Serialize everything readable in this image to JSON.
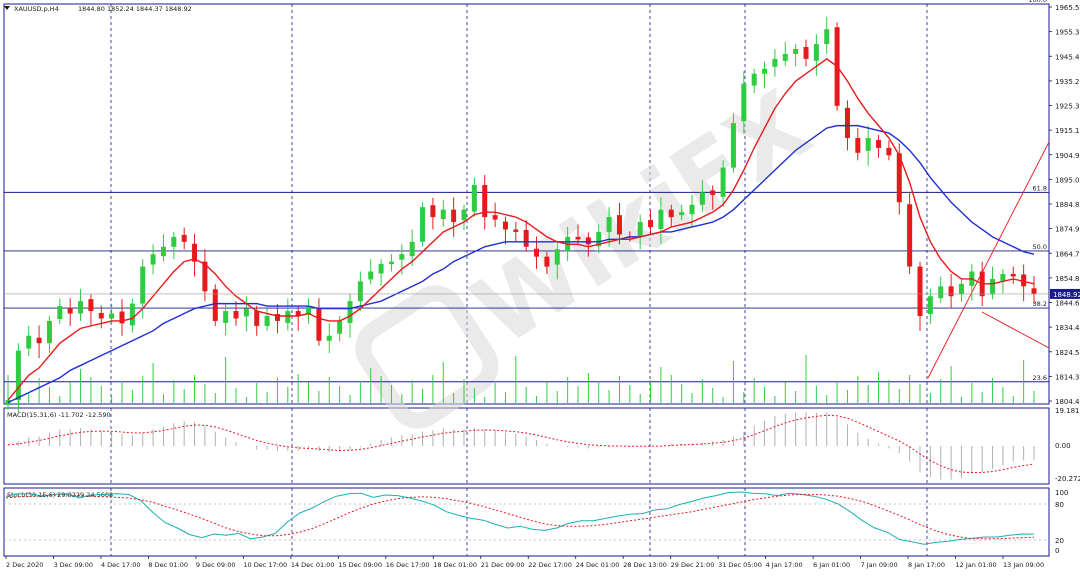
{
  "window": {
    "title": "XAUUSD.p,H4",
    "ohlc": "1844.80 1852.24 1844.37 1848.92"
  },
  "colors": {
    "background": "#ffffff",
    "border": "#1a1a8c",
    "grid_vertical": "#1a1a8c",
    "candle_up": "#2ecc40",
    "candle_down": "#e8191c",
    "ma_fast": "#e8191c",
    "ma_slow": "#1f2fd0",
    "volume": "#2ecc40",
    "fib": "#1a1a8c",
    "trend": "#e8191c",
    "macd_hist": "#b0b0b0",
    "macd_signal": "#e8191c",
    "stoch_main": "#1ab0b0",
    "stoch_signal": "#e8191c",
    "current_price_bg": "#1a1a8c",
    "current_price_fg": "#ffffff",
    "watermark": "#d9d9d9"
  },
  "watermark": {
    "text": "WikiFX"
  },
  "price_axis": {
    "ticks": [
      "1965.50",
      "1955.30",
      "1945.40",
      "1935.20",
      "1925.30",
      "1915.10",
      "1904.90",
      "1895.00",
      "1884.80",
      "1874.90",
      "1864.70",
      "1854.80",
      "1844.60",
      "1834.40",
      "1824.50",
      "1814.30",
      "1804.40"
    ],
    "current_price": "1848.92"
  },
  "fibonacci": {
    "levels": [
      {
        "label": "100.0",
        "price": 1966.2
      },
      {
        "label": "61.8",
        "price": 1890.0
      },
      {
        "label": "50.0",
        "price": 1866.3
      },
      {
        "label": "38.2",
        "price": 1843.2
      },
      {
        "label": "23.6",
        "price": 1813.4
      }
    ]
  },
  "macd": {
    "label": "MACD(15,31,6) -11.702 -12.590",
    "ticks": [
      "19.181",
      "0.00",
      "-20.272"
    ]
  },
  "stochastic": {
    "label": "Stoch(30,15,6) 29.8229 24.5668",
    "ticks": [
      "100",
      "80",
      "20",
      "0"
    ],
    "levels": [
      80,
      20
    ]
  },
  "time_axis": {
    "labels": [
      "2 Dec 2020",
      "3 Dec 09:00",
      "4 Dec 17:00",
      "8 Dec 01:00",
      "9 Dec 09:00",
      "10 Dec 17:00",
      "14 Dec 01:00",
      "15 Dec 09:00",
      "16 Dec 17:00",
      "18 Dec 01:00",
      "21 Dec 09:00",
      "22 Dec 17:00",
      "24 Dec 01:00",
      "28 Dec 13:00",
      "29 Dec 21:00",
      "31 Dec 05:00",
      "4 Jan 17:00",
      "6 Jan 01:00",
      "7 Jan 09:00",
      "8 Jan 17:00",
      "12 Jan 01:00",
      "13 Jan 09:00"
    ]
  },
  "chart_data": {
    "type": "candlestick",
    "symbol": "XAUUSD.p",
    "timeframe": "H4",
    "ylim": [
      1804.4,
      1966.2
    ],
    "close": [
      1806,
      1826,
      1832,
      1829,
      1838,
      1844,
      1841,
      1846,
      1842,
      1839,
      1841,
      1837,
      1845,
      1860,
      1865,
      1868,
      1872,
      1870,
      1862,
      1850,
      1838,
      1842,
      1839,
      1843,
      1836,
      1840,
      1838,
      1842,
      1840,
      1844,
      1830,
      1832,
      1838,
      1846,
      1854,
      1858,
      1861,
      1862,
      1865,
      1870,
      1884,
      1880,
      1883,
      1878,
      1883,
      1893,
      1880,
      1879,
      1875,
      1874,
      1868,
      1864,
      1860,
      1867,
      1872,
      1871,
      1869,
      1874,
      1880,
      1873,
      1872,
      1878,
      1876,
      1883,
      1880,
      1882,
      1885,
      1890,
      1889,
      1900,
      1918,
      1934,
      1938,
      1940,
      1944,
      1946,
      1948,
      1944,
      1950,
      1956,
      1925,
      1912,
      1906,
      1912,
      1908,
      1905,
      1886,
      1860,
      1840,
      1848,
      1852,
      1848,
      1853,
      1858,
      1848,
      1855,
      1857,
      1856,
      1852,
      1848.92
    ],
    "ma_fast": [
      1806,
      1811,
      1816,
      1819,
      1824,
      1829,
      1832,
      1835,
      1836,
      1837,
      1838,
      1838,
      1839,
      1843,
      1848,
      1853,
      1858,
      1862,
      1863,
      1861,
      1857,
      1852,
      1848,
      1845,
      1842,
      1841,
      1840,
      1840,
      1840,
      1841,
      1839,
      1838,
      1838,
      1840,
      1843,
      1847,
      1851,
      1855,
      1859,
      1862,
      1866,
      1870,
      1874,
      1876,
      1878,
      1881,
      1882,
      1882,
      1881,
      1880,
      1878,
      1875,
      1872,
      1870,
      1869,
      1869,
      1868,
      1869,
      1870,
      1871,
      1871,
      1872,
      1873,
      1874,
      1876,
      1877,
      1878,
      1880,
      1882,
      1885,
      1891,
      1899,
      1908,
      1916,
      1924,
      1930,
      1935,
      1938,
      1941,
      1944,
      1941,
      1935,
      1928,
      1922,
      1917,
      1912,
      1905,
      1894,
      1880,
      1870,
      1863,
      1858,
      1855,
      1855,
      1853,
      1853,
      1854,
      1855,
      1854,
      1853
    ],
    "ma_slow": [
      1805,
      1807,
      1809,
      1811,
      1813,
      1815,
      1818,
      1820,
      1822,
      1824,
      1826,
      1828,
      1830,
      1832,
      1834,
      1837,
      1839,
      1841,
      1843,
      1844,
      1845,
      1845,
      1845,
      1845,
      1845,
      1844,
      1844,
      1844,
      1844,
      1844,
      1843,
      1843,
      1843,
      1843,
      1844,
      1845,
      1846,
      1848,
      1850,
      1852,
      1854,
      1857,
      1859,
      1862,
      1864,
      1866,
      1868,
      1869,
      1870,
      1870,
      1870,
      1870,
      1870,
      1870,
      1870,
      1870,
      1870,
      1870,
      1871,
      1871,
      1872,
      1872,
      1873,
      1874,
      1874,
      1875,
      1876,
      1877,
      1878,
      1880,
      1883,
      1887,
      1891,
      1895,
      1899,
      1903,
      1907,
      1910,
      1913,
      1916,
      1917,
      1917,
      1917,
      1916,
      1915,
      1914,
      1911,
      1907,
      1902,
      1896,
      1891,
      1886,
      1882,
      1878,
      1875,
      1872,
      1870,
      1868,
      1866,
      1865
    ],
    "stoch_main": [
      93,
      97,
      97,
      93,
      96,
      97,
      90,
      95,
      96,
      97,
      96,
      86,
      66,
      49,
      40,
      29,
      24,
      30,
      28,
      31,
      22,
      25,
      31,
      50,
      65,
      73,
      84,
      93,
      97,
      98,
      91,
      95,
      94,
      90,
      85,
      78,
      67,
      61,
      56,
      53,
      46,
      40,
      43,
      38,
      36,
      40,
      48,
      52,
      52,
      56,
      60,
      63,
      64,
      70,
      72,
      79,
      84,
      90,
      94,
      99,
      100,
      98,
      97,
      94,
      98,
      96,
      93,
      88,
      80,
      67,
      52,
      40,
      33,
      21,
      17,
      13,
      16,
      18,
      21,
      23,
      25,
      25,
      28,
      30,
      29.82
    ],
    "stoch_signal": [
      90,
      92,
      93,
      94,
      95,
      95,
      94,
      93,
      92,
      91,
      90,
      87,
      83,
      76,
      70,
      63,
      56,
      48,
      40,
      34,
      30,
      27,
      27,
      29,
      33,
      39,
      47,
      56,
      65,
      73,
      80,
      85,
      89,
      91,
      92,
      91,
      89,
      85,
      81,
      76,
      70,
      64,
      58,
      52,
      47,
      44,
      43,
      43,
      44,
      46,
      49,
      52,
      55,
      58,
      61,
      64,
      67,
      71,
      75,
      79,
      83,
      87,
      90,
      93,
      95,
      96,
      96,
      95,
      93,
      89,
      84,
      77,
      69,
      61,
      52,
      43,
      35,
      29,
      25,
      22,
      22,
      22,
      23,
      24,
      24.57
    ]
  }
}
